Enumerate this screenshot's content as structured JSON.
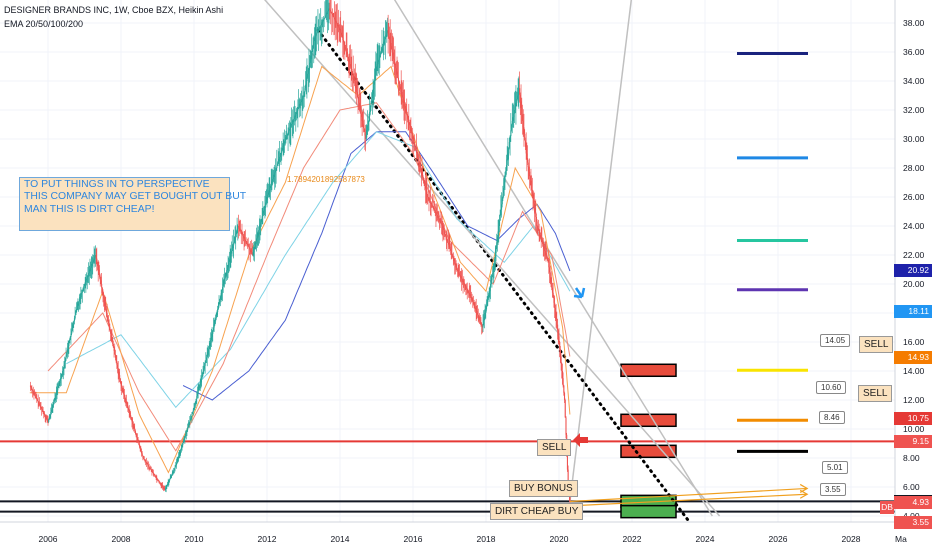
{
  "header": {
    "title": "DESIGNER BRANDS INC, 1W, Cboe BZX, Heikin Ashi",
    "indicator": "EMA 20/50/100/200"
  },
  "note": {
    "lines": [
      "TO PUT THINGS IN TO PERSPECTIVE",
      "THIS COMPANY MAY GET BOUGHT OUT BUT",
      "MAN THIS IS DIRT CHEAP!"
    ]
  },
  "floating_text": "1.7894201892587873",
  "labels": {
    "sell_main": "SELL",
    "buy_bonus": "BUY BONUS",
    "dirt_cheap": "DIRT CHEAP BUY",
    "sell_upper": "SELL",
    "sell_lower": "SELL",
    "db_tag": "DB"
  },
  "callouts": [
    "14.05",
    "10.60",
    "8.46",
    "5.01",
    "3.55"
  ],
  "colors": {
    "up": "#26a69a",
    "down": "#ef5350",
    "ema20": "#f7a24f",
    "ema50": "#f28b7a",
    "ema100": "#7fd3e6",
    "ema200": "#4a5fd1",
    "red_line": "#e53935",
    "sell_box": "#e74c3c",
    "buy_box": "#4caf50"
  },
  "price_tags": [
    {
      "value": 20.92,
      "text": "20.92",
      "color": "#1e22aa"
    },
    {
      "value": 18.11,
      "text": "18.11",
      "color": "#2196f3"
    },
    {
      "value": 14.93,
      "text": "14.93",
      "color": "#f57c00"
    },
    {
      "value": 10.75,
      "text": "10.75",
      "color": "#e53935"
    },
    {
      "value": 9.15,
      "text": "9.15",
      "color": "#ef5350"
    },
    {
      "value": 5.01,
      "text": "5.01",
      "color": "#131722"
    },
    {
      "value": 4.93,
      "text": "4.93",
      "color": "#ef5350"
    },
    {
      "value": 3.55,
      "text": "3.55",
      "color": "#ef5350"
    }
  ],
  "chart_data": {
    "type": "line",
    "x_ticks": [
      "2006",
      "2008",
      "2010",
      "2012",
      "2014",
      "2016",
      "2018",
      "2020",
      "2022",
      "2024",
      "2026",
      "2028",
      "Ma"
    ],
    "y_ticks": [
      "38.00",
      "36.00",
      "34.00",
      "32.00",
      "30.00",
      "28.00",
      "26.00",
      "24.00",
      "22.00",
      "20.00",
      "18.00",
      "16.00",
      "14.00",
      "12.00",
      "10.00",
      "8.00",
      "6.00",
      "4.00"
    ],
    "ylim": [
      4.0,
      38.0
    ],
    "xlim": [
      2005.0,
      2029.2
    ],
    "price": [
      [
        2005.5,
        13.0
      ],
      [
        2006.0,
        10.5
      ],
      [
        2006.4,
        14.0
      ],
      [
        2006.8,
        18.5
      ],
      [
        2007.0,
        20.0
      ],
      [
        2007.3,
        22.0
      ],
      [
        2007.6,
        18.0
      ],
      [
        2008.0,
        13.0
      ],
      [
        2008.3,
        10.5
      ],
      [
        2008.6,
        8.0
      ],
      [
        2009.0,
        6.5
      ],
      [
        2009.2,
        5.8
      ],
      [
        2009.5,
        7.5
      ],
      [
        2010.0,
        11.5
      ],
      [
        2010.4,
        15.5
      ],
      [
        2010.8,
        20.0
      ],
      [
        2011.2,
        24.0
      ],
      [
        2011.6,
        22.0
      ],
      [
        2012.0,
        26.0
      ],
      [
        2012.5,
        30.0
      ],
      [
        2013.0,
        33.0
      ],
      [
        2013.3,
        37.0
      ],
      [
        2013.7,
        39.0
      ],
      [
        2014.0,
        37.5
      ],
      [
        2014.4,
        34.0
      ],
      [
        2014.7,
        30.0
      ],
      [
        2015.0,
        35.0
      ],
      [
        2015.3,
        37.5
      ],
      [
        2015.6,
        34.0
      ],
      [
        2016.0,
        30.0
      ],
      [
        2016.4,
        26.0
      ],
      [
        2016.8,
        24.0
      ],
      [
        2017.2,
        21.0
      ],
      [
        2017.6,
        19.0
      ],
      [
        2017.9,
        17.0
      ],
      [
        2018.2,
        21.0
      ],
      [
        2018.5,
        27.0
      ],
      [
        2018.7,
        31.0
      ],
      [
        2018.9,
        33.5
      ],
      [
        2019.1,
        29.0
      ],
      [
        2019.4,
        24.0
      ],
      [
        2019.7,
        21.5
      ],
      [
        2019.9,
        18.0
      ],
      [
        2020.0,
        16.0
      ],
      [
        2020.15,
        12.0
      ],
      [
        2020.25,
        6.0
      ],
      [
        2020.3,
        5.0
      ]
    ],
    "ema20": [
      [
        2005.5,
        12.5
      ],
      [
        2006.5,
        12.5
      ],
      [
        2007.5,
        19.5
      ],
      [
        2008.5,
        11.0
      ],
      [
        2009.3,
        7.0
      ],
      [
        2010.5,
        14.0
      ],
      [
        2011.5,
        22.0
      ],
      [
        2012.5,
        27.0
      ],
      [
        2013.5,
        35.0
      ],
      [
        2014.5,
        33.0
      ],
      [
        2015.4,
        35.0
      ],
      [
        2016.3,
        28.0
      ],
      [
        2017.3,
        21.5
      ],
      [
        2018.0,
        19.5
      ],
      [
        2018.8,
        28.0
      ],
      [
        2019.5,
        25.0
      ],
      [
        2020.1,
        17.0
      ],
      [
        2020.3,
        11.0
      ]
    ],
    "ema50": [
      [
        2006.0,
        14.0
      ],
      [
        2007.5,
        18.0
      ],
      [
        2008.5,
        12.5
      ],
      [
        2009.5,
        8.5
      ],
      [
        2010.8,
        14.5
      ],
      [
        2012.0,
        22.0
      ],
      [
        2013.0,
        28.0
      ],
      [
        2014.0,
        32.0
      ],
      [
        2015.0,
        32.5
      ],
      [
        2016.0,
        29.0
      ],
      [
        2017.0,
        23.0
      ],
      [
        2018.2,
        20.0
      ],
      [
        2019.0,
        25.0
      ],
      [
        2019.8,
        22.0
      ],
      [
        2020.3,
        15.0
      ]
    ],
    "ema100": [
      [
        2006.5,
        14.5
      ],
      [
        2008.0,
        16.5
      ],
      [
        2009.5,
        11.5
      ],
      [
        2011.0,
        15.5
      ],
      [
        2012.5,
        22.0
      ],
      [
        2013.8,
        27.0
      ],
      [
        2015.0,
        30.5
      ],
      [
        2016.0,
        29.5
      ],
      [
        2017.2,
        24.5
      ],
      [
        2018.5,
        21.5
      ],
      [
        2019.3,
        24.0
      ],
      [
        2020.3,
        19.5
      ]
    ],
    "ema200": [
      [
        2009.7,
        13.0
      ],
      [
        2010.5,
        12.0
      ],
      [
        2011.5,
        14.0
      ],
      [
        2012.5,
        17.5
      ],
      [
        2013.5,
        23.5
      ],
      [
        2014.3,
        29.0
      ],
      [
        2015.0,
        30.5
      ],
      [
        2015.8,
        30.5
      ],
      [
        2016.6,
        27.5
      ],
      [
        2017.5,
        24.0
      ],
      [
        2018.3,
        23.0
      ],
      [
        2018.9,
        24.5
      ],
      [
        2019.4,
        25.5
      ],
      [
        2019.9,
        23.5
      ],
      [
        2020.3,
        20.9
      ]
    ],
    "trendlines": [
      {
        "style": "dotted",
        "color": "#000000",
        "from": [
          2013.4,
          37.5
        ],
        "to": [
          2023.6,
          3.5
        ]
      },
      {
        "style": "solid",
        "color": "#c0c0c0",
        "from": [
          2011.8,
          40.0
        ],
        "to": [
          2024.4,
          4.0
        ]
      },
      {
        "style": "solid",
        "color": "#c0c0c0",
        "from": [
          2015.4,
          40.0
        ],
        "to": [
          2024.2,
          4.0
        ]
      },
      {
        "style": "solid",
        "color": "#c0c0c0",
        "from": [
          2020.25,
          4.0
        ],
        "to": [
          2022.0,
          40.0
        ]
      }
    ],
    "horizontal_lines": [
      {
        "value": 9.15,
        "color": "#e53935",
        "width": 2
      },
      {
        "value": 5.01,
        "color": "#131722",
        "width": 2
      },
      {
        "value": 4.3,
        "color": "#131722",
        "width": 2
      }
    ],
    "target_levels": [
      {
        "value": 35.9,
        "color": "#1a237e"
      },
      {
        "value": 28.7,
        "color": "#1e88e5"
      },
      {
        "value": 23.0,
        "color": "#26c6a0"
      },
      {
        "value": 19.6,
        "color": "#5e35b1"
      },
      {
        "value": 14.05,
        "color": "#f9e400"
      },
      {
        "value": 10.6,
        "color": "#f28c00"
      },
      {
        "value": 8.46,
        "color": "#000000"
      }
    ],
    "zones": [
      {
        "kind": "sell",
        "value": 14.05
      },
      {
        "kind": "sell",
        "value": 10.6
      },
      {
        "kind": "sell",
        "value": 8.46
      },
      {
        "kind": "buy",
        "value": 5.01
      },
      {
        "kind": "buy",
        "value": 4.3
      }
    ],
    "projections": [
      {
        "from": [
          2020.3,
          5.0
        ],
        "to": [
          2026.8,
          5.9
        ]
      },
      {
        "from": [
          2020.3,
          4.7
        ],
        "to": [
          2026.8,
          5.5
        ]
      }
    ]
  }
}
